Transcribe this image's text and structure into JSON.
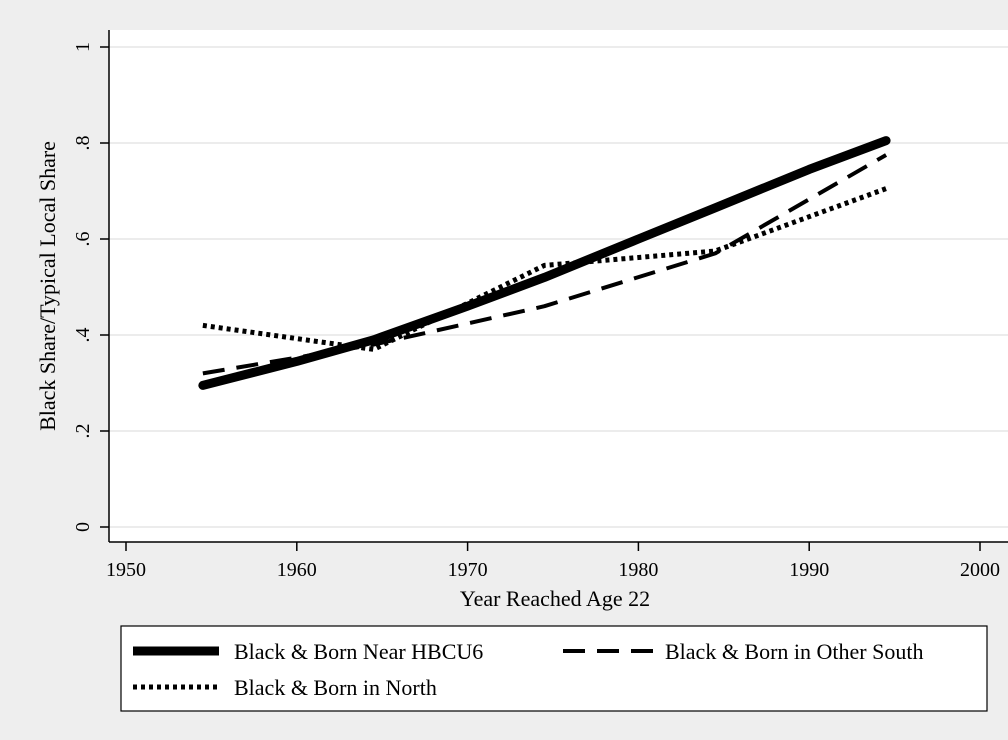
{
  "chart_data": {
    "type": "line",
    "xlabel": "Year Reached Age 22",
    "ylabel": "Black Share/Typical Local Share",
    "xlim": [
      1950,
      2000
    ],
    "ylim": [
      0,
      1
    ],
    "xticks": [
      1950,
      1960,
      1970,
      1980,
      1990,
      2000
    ],
    "yticks": [
      0,
      0.2,
      0.4,
      0.6,
      0.8,
      1
    ],
    "ytick_labels": [
      "0",
      ".2",
      ".4",
      ".6",
      ".8",
      "1"
    ],
    "grid": true,
    "legend_position": "bottom",
    "series": [
      {
        "name": "Black & Born Near HBCU6",
        "style": "solid-thick",
        "x": [
          1954.5,
          1960,
          1964.5,
          1970,
          1974.5,
          1980,
          1984.5,
          1990,
          1994.5
        ],
        "y": [
          0.295,
          0.345,
          0.39,
          0.46,
          0.52,
          0.6,
          0.665,
          0.745,
          0.805
        ]
      },
      {
        "name": "Black & Born in Other South",
        "style": "dashed",
        "x": [
          1954.5,
          1964.5,
          1974.5,
          1984.5,
          1994.5
        ],
        "y": [
          0.32,
          0.38,
          0.46,
          0.57,
          0.775
        ]
      },
      {
        "name": "Black & Born in North",
        "style": "dotted",
        "x": [
          1954.5,
          1964.5,
          1974.5,
          1984.5,
          1994.5
        ],
        "y": [
          0.42,
          0.37,
          0.545,
          0.575,
          0.705
        ]
      }
    ]
  }
}
